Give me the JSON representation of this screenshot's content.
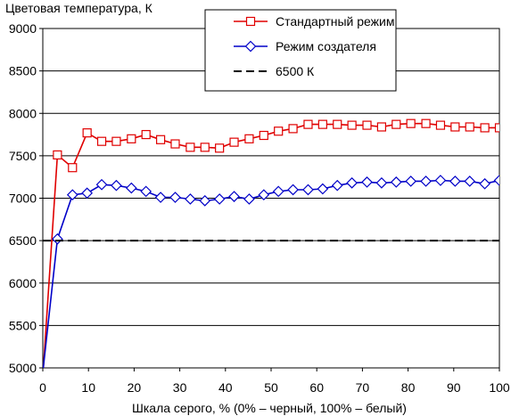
{
  "chart_data": {
    "type": "line",
    "title": "",
    "ylabel": "Цветовая температура, К",
    "xlabel": "Шкала серого, % (0% – черный, 100% – белый)",
    "xlim": [
      0,
      100
    ],
    "ylim": [
      5000,
      9000
    ],
    "x_ticks": [
      0,
      10,
      20,
      30,
      40,
      50,
      60,
      70,
      80,
      90,
      100
    ],
    "y_ticks": [
      5000,
      5500,
      6000,
      6500,
      7000,
      7500,
      8000,
      8500,
      9000
    ],
    "grid": "horizontal",
    "legend_position": "top-center",
    "series": [
      {
        "name": "Стандартный режим",
        "color": "#e00000",
        "marker": "square",
        "line": "solid",
        "x": [
          0,
          3.2,
          6.5,
          9.7,
          12.9,
          16.1,
          19.4,
          22.6,
          25.8,
          29,
          32.3,
          35.5,
          38.7,
          41.9,
          45.2,
          48.4,
          51.6,
          54.8,
          58.1,
          61.3,
          64.5,
          67.7,
          71,
          74.2,
          77.4,
          80.6,
          83.9,
          87.1,
          90.3,
          93.5,
          96.8,
          100
        ],
        "values": [
          4900,
          7510,
          7360,
          7770,
          7670,
          7670,
          7700,
          7750,
          7690,
          7640,
          7600,
          7600,
          7590,
          7660,
          7700,
          7740,
          7790,
          7820,
          7870,
          7870,
          7870,
          7860,
          7860,
          7840,
          7870,
          7880,
          7880,
          7860,
          7840,
          7840,
          7830,
          7830
        ]
      },
      {
        "name": "Режим создателя",
        "color": "#0000c8",
        "marker": "diamond",
        "line": "solid",
        "x": [
          0,
          3.2,
          6.5,
          9.7,
          12.9,
          16.1,
          19.4,
          22.6,
          25.8,
          29,
          32.3,
          35.5,
          38.7,
          41.9,
          45.2,
          48.4,
          51.6,
          54.8,
          58.1,
          61.3,
          64.5,
          67.7,
          71,
          74.2,
          77.4,
          80.6,
          83.9,
          87.1,
          90.3,
          93.5,
          96.8,
          100
        ],
        "values": [
          4950,
          6520,
          7040,
          7060,
          7160,
          7150,
          7120,
          7080,
          7010,
          7010,
          6990,
          6970,
          6990,
          7020,
          6990,
          7040,
          7080,
          7100,
          7100,
          7110,
          7150,
          7180,
          7190,
          7180,
          7190,
          7200,
          7200,
          7210,
          7200,
          7200,
          7170,
          7210
        ]
      },
      {
        "name": "6500 К",
        "color": "#000000",
        "marker": "none",
        "line": "dashed",
        "x": [
          0,
          100
        ],
        "values": [
          6500,
          6500
        ]
      }
    ]
  }
}
